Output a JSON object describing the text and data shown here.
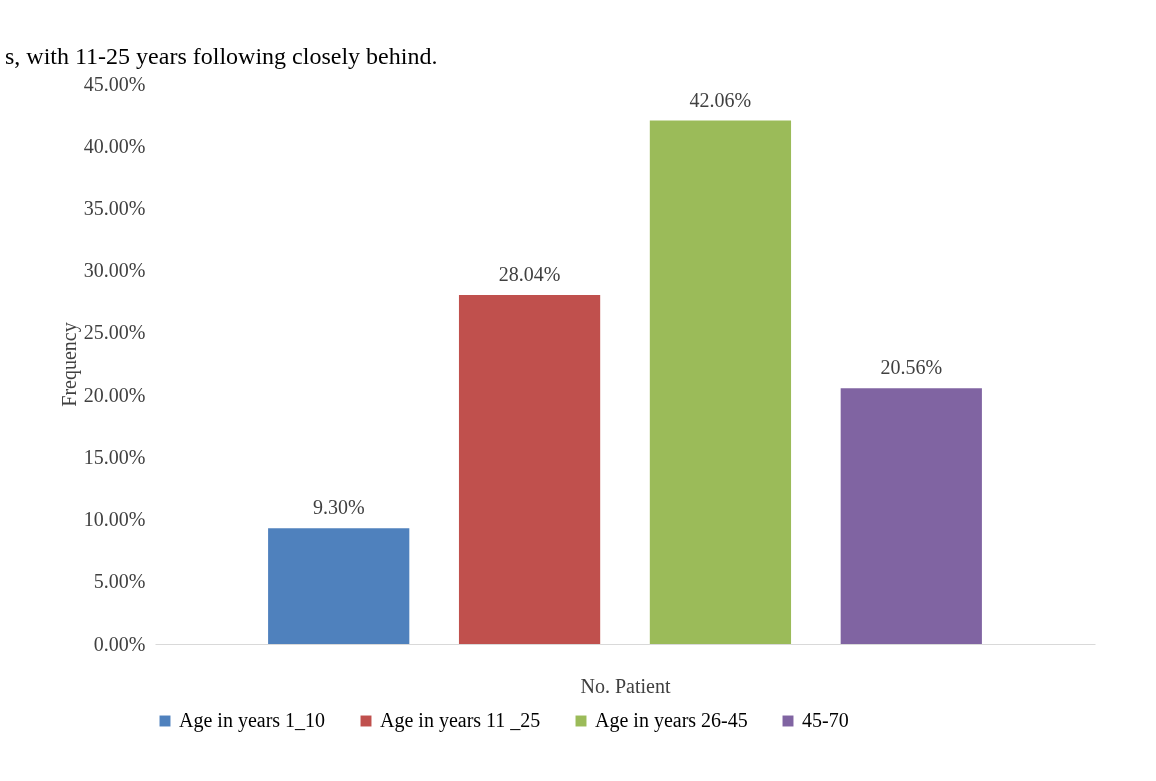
{
  "chart_data": {
    "type": "bar",
    "annotations": [
      "s, with 11-25 years following closely behind."
    ],
    "xlabel": "No. Patient",
    "ylabel": "Frequency",
    "categories": [
      null
    ],
    "series": [
      {
        "name": "Age in years 1_10",
        "color": "#4f81bd",
        "values": [
          9.3
        ],
        "value_labels": [
          "9.30%"
        ]
      },
      {
        "name": "Age in years 11 _25",
        "color": "#c0504d",
        "values": [
          28.04
        ],
        "value_labels": [
          "28.04%"
        ]
      },
      {
        "name": "Age in years 26-45",
        "color": "#9bbb59",
        "values": [
          42.06
        ],
        "value_labels": [
          "42.06%"
        ]
      },
      {
        "name": "45-70",
        "color": "#8064a2",
        "values": [
          20.56
        ],
        "value_labels": [
          "20.56%"
        ]
      }
    ],
    "ylim": [
      0,
      45
    ],
    "yticks": [
      {
        "value": 0,
        "label": "0.00%"
      },
      {
        "value": 5,
        "label": "5.00%"
      },
      {
        "value": 10,
        "label": "10.00%"
      },
      {
        "value": 15,
        "label": "15.00%"
      },
      {
        "value": 20,
        "label": "20.00%"
      },
      {
        "value": 25,
        "label": "25.00%"
      },
      {
        "value": 30,
        "label": "30.00%"
      },
      {
        "value": 35,
        "label": "35.00%"
      },
      {
        "value": 40,
        "label": "40.00%"
      },
      {
        "value": 45,
        "label": "45.00%"
      }
    ],
    "grid": false,
    "legend": "bottom"
  }
}
